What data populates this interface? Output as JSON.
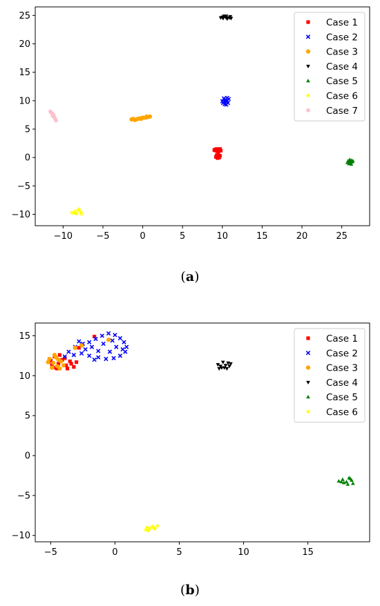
{
  "chart_data": [
    {
      "type": "scatter",
      "panel": "(a)",
      "caption_letter": "a",
      "xlim": [
        -13.5,
        28.5
      ],
      "ylim": [
        -12,
        26.5
      ],
      "xticks": [
        -10,
        -5,
        0,
        5,
        10,
        15,
        20,
        25
      ],
      "yticks": [
        -10,
        -5,
        0,
        5,
        10,
        15,
        20,
        25
      ],
      "grid": false,
      "legend_position": "top-right",
      "series": [
        {
          "name": "Case 1",
          "color": "#ff0000",
          "marker": "square",
          "points": [
            [
              9.1,
              1.4
            ],
            [
              9.3,
              1.5
            ],
            [
              9.5,
              1.3
            ],
            [
              9.7,
              1.5
            ],
            [
              9.4,
              1.1
            ],
            [
              9.2,
              1.2
            ],
            [
              9.8,
              1.2
            ],
            [
              9.3,
              0.4
            ],
            [
              9.5,
              0.2
            ],
            [
              9.6,
              0.0
            ],
            [
              9.4,
              -0.1
            ],
            [
              9.7,
              0.3
            ],
            [
              9.5,
              0.6
            ],
            [
              9.2,
              0.1
            ],
            [
              9.0,
              1.3
            ]
          ]
        },
        {
          "name": "Case 2",
          "color": "#0000ff",
          "marker": "x",
          "points": [
            [
              10.1,
              9.6
            ],
            [
              10.4,
              10.2
            ],
            [
              10.6,
              10.0
            ],
            [
              10.3,
              9.4
            ],
            [
              10.8,
              10.3
            ],
            [
              10.5,
              9.8
            ],
            [
              10.2,
              10.4
            ],
            [
              10.7,
              9.6
            ],
            [
              10.4,
              9.9
            ],
            [
              10.6,
              10.5
            ],
            [
              10.0,
              9.9
            ],
            [
              10.5,
              9.3
            ]
          ]
        },
        {
          "name": "Case 3",
          "color": "#ffa500",
          "marker": "circle",
          "points": [
            [
              -1.4,
              6.7
            ],
            [
              -1.0,
              6.6
            ],
            [
              -0.6,
              6.8
            ],
            [
              -0.3,
              6.9
            ],
            [
              0.0,
              7.0
            ],
            [
              0.3,
              7.0
            ],
            [
              0.6,
              7.1
            ],
            [
              0.9,
              7.2
            ],
            [
              -0.8,
              6.7
            ],
            [
              -0.2,
              6.8
            ],
            [
              0.5,
              7.2
            ],
            [
              -1.2,
              6.8
            ]
          ]
        },
        {
          "name": "Case 4",
          "color": "#000000",
          "marker": "triangle-down",
          "points": [
            [
              9.8,
              24.6
            ],
            [
              10.1,
              24.5
            ],
            [
              10.4,
              24.7
            ],
            [
              10.7,
              24.6
            ],
            [
              11.0,
              24.8
            ],
            [
              10.2,
              24.9
            ],
            [
              10.6,
              24.4
            ],
            [
              10.9,
              24.6
            ],
            [
              10.0,
              24.7
            ],
            [
              10.5,
              24.9
            ],
            [
              11.1,
              24.5
            ]
          ]
        },
        {
          "name": "Case 5",
          "color": "#008000",
          "marker": "triangle-up",
          "points": [
            [
              25.7,
              -0.9
            ],
            [
              26.0,
              -0.7
            ],
            [
              26.2,
              -0.5
            ],
            [
              26.3,
              -0.8
            ],
            [
              25.9,
              -1.1
            ],
            [
              26.1,
              -1.0
            ],
            [
              25.8,
              -0.6
            ],
            [
              26.4,
              -0.6
            ],
            [
              26.0,
              -0.4
            ],
            [
              26.2,
              -1.2
            ]
          ]
        },
        {
          "name": "Case 6",
          "color": "#ffff00",
          "marker": "star",
          "points": [
            [
              -8.9,
              -9.7
            ],
            [
              -8.5,
              -9.5
            ],
            [
              -8.1,
              -9.3
            ],
            [
              -7.8,
              -9.6
            ],
            [
              -8.3,
              -9.9
            ],
            [
              -7.7,
              -9.9
            ],
            [
              -8.6,
              -9.8
            ],
            [
              -8.0,
              -9.1
            ]
          ]
        },
        {
          "name": "Case 7",
          "color": "#ffc0cb",
          "marker": "hexagon",
          "points": [
            [
              -11.6,
              8.1
            ],
            [
              -11.4,
              7.8
            ],
            [
              -11.2,
              7.5
            ],
            [
              -11.1,
              7.1
            ],
            [
              -11.0,
              6.8
            ],
            [
              -10.9,
              6.5
            ],
            [
              -11.5,
              7.9
            ],
            [
              -11.3,
              7.3
            ]
          ]
        }
      ]
    },
    {
      "type": "scatter",
      "panel": "(b)",
      "caption_letter": "b",
      "xlim": [
        -6.2,
        19.8
      ],
      "ylim": [
        -10.8,
        16.6
      ],
      "xticks": [
        -5,
        0,
        5,
        10,
        15
      ],
      "yticks": [
        -10,
        -5,
        0,
        5,
        10,
        15
      ],
      "grid": false,
      "legend_position": "top-right",
      "series": [
        {
          "name": "Case 1",
          "color": "#ff0000",
          "marker": "square",
          "points": [
            [
              -5.0,
              11.9
            ],
            [
              -4.7,
              12.4
            ],
            [
              -4.4,
              11.5
            ],
            [
              -4.1,
              12.0
            ],
            [
              -3.8,
              11.3
            ],
            [
              -3.5,
              11.8
            ],
            [
              -3.2,
              11.1
            ],
            [
              -4.6,
              11.0
            ],
            [
              -4.3,
              12.6
            ],
            [
              -3.9,
              12.2
            ],
            [
              -3.4,
              11.5
            ],
            [
              -3.0,
              11.7
            ],
            [
              -4.9,
              11.4
            ],
            [
              -4.5,
              10.9
            ],
            [
              -3.7,
              10.9
            ],
            [
              -2.6,
              13.8
            ],
            [
              -1.6,
              14.9
            ],
            [
              -2.8,
              13.5
            ]
          ]
        },
        {
          "name": "Case 2",
          "color": "#0000ff",
          "marker": "x",
          "points": [
            [
              -3.6,
              13.0
            ],
            [
              -3.1,
              13.6
            ],
            [
              -2.5,
              14.0
            ],
            [
              -2.0,
              14.2
            ],
            [
              -1.5,
              14.6
            ],
            [
              -1.0,
              15.0
            ],
            [
              -0.5,
              15.3
            ],
            [
              0.0,
              15.1
            ],
            [
              0.4,
              14.7
            ],
            [
              0.7,
              14.2
            ],
            [
              0.9,
              13.6
            ],
            [
              0.8,
              13.0
            ],
            [
              0.4,
              12.5
            ],
            [
              -0.1,
              12.2
            ],
            [
              -0.7,
              12.1
            ],
            [
              -1.3,
              12.3
            ],
            [
              -2.0,
              12.5
            ],
            [
              -2.6,
              12.8
            ],
            [
              -3.2,
              12.6
            ],
            [
              -1.8,
              13.6
            ],
            [
              -0.9,
              14.0
            ],
            [
              0.1,
              13.6
            ],
            [
              -0.4,
              13.0
            ],
            [
              -1.3,
              13.1
            ],
            [
              -2.3,
              13.3
            ],
            [
              -0.2,
              14.4
            ],
            [
              0.6,
              13.3
            ],
            [
              -2.8,
              14.3
            ],
            [
              -3.9,
              12.4
            ],
            [
              -1.6,
              12.0
            ]
          ]
        },
        {
          "name": "Case 3",
          "color": "#ffa500",
          "marker": "circle",
          "points": [
            [
              -5.1,
              12.1
            ],
            [
              -4.8,
              11.6
            ],
            [
              -4.5,
              11.2
            ],
            [
              -4.2,
              11.8
            ],
            [
              -4.6,
              12.3
            ],
            [
              -4.9,
              11.0
            ],
            [
              -4.0,
              11.3
            ],
            [
              -4.3,
              10.9
            ],
            [
              -4.7,
              12.6
            ],
            [
              -3.1,
              13.5
            ],
            [
              -2.6,
              13.8
            ],
            [
              -0.5,
              14.5
            ],
            [
              -4.4,
              12.0
            ],
            [
              -5.2,
              11.7
            ]
          ]
        },
        {
          "name": "Case 4",
          "color": "#000000",
          "marker": "triangle-down",
          "points": [
            [
              8.0,
              11.4
            ],
            [
              8.3,
              11.0
            ],
            [
              8.6,
              11.3
            ],
            [
              8.9,
              11.2
            ],
            [
              8.4,
              11.7
            ],
            [
              8.7,
              10.9
            ],
            [
              8.2,
              11.2
            ],
            [
              9.0,
              11.5
            ],
            [
              8.5,
              11.0
            ],
            [
              8.8,
              11.6
            ],
            [
              8.1,
              10.9
            ]
          ]
        },
        {
          "name": "Case 5",
          "color": "#008000",
          "marker": "triangle-up",
          "points": [
            [
              17.4,
              -3.2
            ],
            [
              17.7,
              -3.0
            ],
            [
              18.0,
              -3.3
            ],
            [
              18.3,
              -2.9
            ],
            [
              18.5,
              -3.5
            ],
            [
              18.1,
              -3.6
            ],
            [
              17.8,
              -3.4
            ],
            [
              18.4,
              -3.1
            ],
            [
              17.6,
              -3.3
            ],
            [
              18.2,
              -2.8
            ]
          ]
        },
        {
          "name": "Case 6",
          "color": "#ffff00",
          "marker": "star",
          "points": [
            [
              2.4,
              -9.3
            ],
            [
              2.7,
              -9.1
            ],
            [
              3.0,
              -9.0
            ],
            [
              3.3,
              -8.8
            ],
            [
              2.6,
              -9.4
            ],
            [
              3.1,
              -9.2
            ],
            [
              2.9,
              -8.9
            ],
            [
              2.5,
              -9.0
            ]
          ]
        }
      ]
    }
  ],
  "captions": [
    {
      "letter": "a"
    },
    {
      "letter": "b"
    }
  ]
}
